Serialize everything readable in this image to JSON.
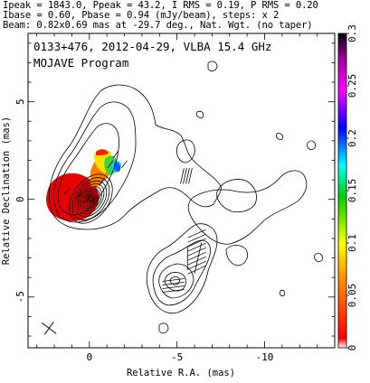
{
  "header": {
    "line1": "Ipeak = 1843.0, Ppeak = 43.2, I RMS = 0.19, P RMS = 0.20",
    "line2": "Ibase = 0.60, Pbase = 0.94 (mJy/beam), steps: x 2",
    "line3": "Beam: 0.82x0.69 mas at -29.7 deg., Nat. Wgt. (no taper)"
  },
  "panel": {
    "title": "0133+476, 2012-04-29, VLBA 15.4 GHz",
    "subtitle": "MOJAVE Program"
  },
  "chart_data": {
    "type": "heatmap",
    "subtype": "VLBI contour map with fractional polarization color overlay",
    "xlabel": "Relative R.A. (mas)",
    "ylabel": "Relative Declination (mas)",
    "xlim": [
      3.5,
      -14
    ],
    "ylim": [
      -7.6,
      8.5
    ],
    "x_ticks": [
      0,
      -5,
      -10
    ],
    "y_ticks": [
      -5,
      0,
      5
    ],
    "grid": false,
    "colorbar": {
      "range": [
        0,
        0.3
      ],
      "ticks": [
        "0",
        "0.05",
        "0.1",
        "0.15",
        "0.2",
        "0.25",
        "0.3"
      ],
      "colormap": "rainbow (red-yellow-green-cyan-blue-magenta-black)"
    },
    "core": {
      "x": 0,
      "y": 0,
      "peak_mJy_per_beam": 1843.0
    },
    "jet_component": {
      "x": -5.0,
      "y": -4.0
    },
    "polarization_patch": [
      {
        "x": 0.6,
        "y": 0.2,
        "frac_pol": 0.02
      },
      {
        "x": 1.3,
        "y": 0.4,
        "frac_pol": 0.03
      },
      {
        "x": -0.7,
        "y": 0.9,
        "frac_pol": 0.04
      },
      {
        "x": -1.2,
        "y": 1.8,
        "frac_pol": 0.11
      },
      {
        "x": -1.5,
        "y": 2.3,
        "frac_pol": 0.13
      },
      {
        "x": -2.0,
        "y": 1.8,
        "frac_pol": 0.2
      }
    ],
    "beam_marker": {
      "x": 2.3,
      "y": -6.6
    }
  }
}
